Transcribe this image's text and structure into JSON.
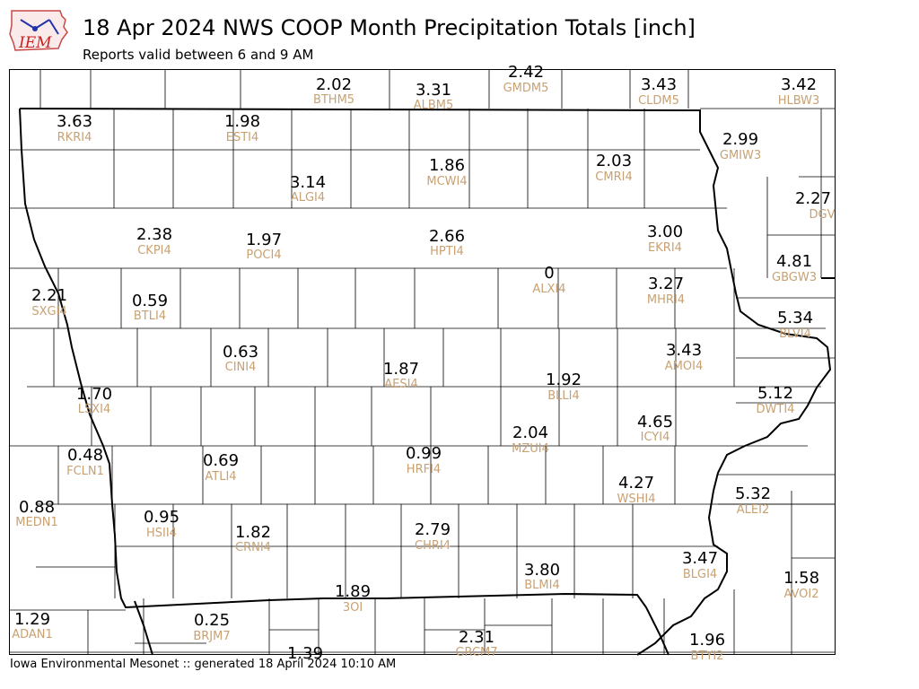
{
  "header": {
    "logo_text": "IEM",
    "title": "18 Apr 2024 NWS COOP Month Precipitation Totals [inch]",
    "subtitle": "Reports valid between 6 and 9 AM"
  },
  "footer": {
    "text": "Iowa Environmental Mesonet :: generated 18 April 2024 10:10 AM"
  },
  "colors": {
    "value_text": "#000000",
    "station_id_text": "#c8a173",
    "county_lines": "#000000",
    "background": "#ffffff"
  },
  "stations": [
    {
      "value": "2.02",
      "id": "BTHM5"
    },
    {
      "value": "3.31",
      "id": "ALBM5"
    },
    {
      "value": "2.42",
      "id": "GMDM5"
    },
    {
      "value": "3.43",
      "id": "CLDM5"
    },
    {
      "value": "3.42",
      "id": "HLBW3"
    },
    {
      "value": "3.63",
      "id": "RKRI4"
    },
    {
      "value": "1.98",
      "id": "ESTI4"
    },
    {
      "value": "2.99",
      "id": "GMIW3"
    },
    {
      "value": "3.14",
      "id": "ALGI4"
    },
    {
      "value": "1.86",
      "id": "MCWI4"
    },
    {
      "value": "2.03",
      "id": "CMRI4"
    },
    {
      "value": "2.27",
      "id": "DGV"
    },
    {
      "value": "2.38",
      "id": "CKPI4"
    },
    {
      "value": "1.97",
      "id": "POCI4"
    },
    {
      "value": "2.66",
      "id": "HPTI4"
    },
    {
      "value": "3.00",
      "id": "EKRI4"
    },
    {
      "value": "4.81",
      "id": "GBGW3"
    },
    {
      "value": "2.21",
      "id": "SXGI4"
    },
    {
      "value": "0.59",
      "id": "BTLI4"
    },
    {
      "value": "0",
      "id": "ALXI4"
    },
    {
      "value": "3.27",
      "id": "MHRI4"
    },
    {
      "value": "5.34",
      "id": "BLVI4"
    },
    {
      "value": "0.63",
      "id": "CINI4"
    },
    {
      "value": "3.43",
      "id": "AMOI4"
    },
    {
      "value": "1.87",
      "id": "AESI4"
    },
    {
      "value": "1.92",
      "id": "BLLI4"
    },
    {
      "value": "1.70",
      "id": "LSXI4"
    },
    {
      "value": "5.12",
      "id": "DWTI4"
    },
    {
      "value": "4.65",
      "id": "ICYI4"
    },
    {
      "value": "2.04",
      "id": "MZUI4"
    },
    {
      "value": "0.48",
      "id": "FCLN1"
    },
    {
      "value": "0.69",
      "id": "ATLI4"
    },
    {
      "value": "0.99",
      "id": "HRFI4"
    },
    {
      "value": "4.27",
      "id": "WSHI4"
    },
    {
      "value": "5.32",
      "id": "ALEI2"
    },
    {
      "value": "0.88",
      "id": "MEDN1"
    },
    {
      "value": "0.95",
      "id": "HSII4"
    },
    {
      "value": "1.82",
      "id": "CRNI4"
    },
    {
      "value": "2.79",
      "id": "CHRI4"
    },
    {
      "value": "3.80",
      "id": "BLMI4"
    },
    {
      "value": "3.47",
      "id": "BLGI4"
    },
    {
      "value": "1.58",
      "id": "AVOI2"
    },
    {
      "value": "1.89",
      "id": "3OI"
    },
    {
      "value": "1.29",
      "id": "ADAN1"
    },
    {
      "value": "0.25",
      "id": "BRJM7"
    },
    {
      "value": "2.31",
      "id": "GRCM7"
    },
    {
      "value": "1.96",
      "id": "BTYI2"
    },
    {
      "value": "1.39",
      "id": ""
    }
  ]
}
